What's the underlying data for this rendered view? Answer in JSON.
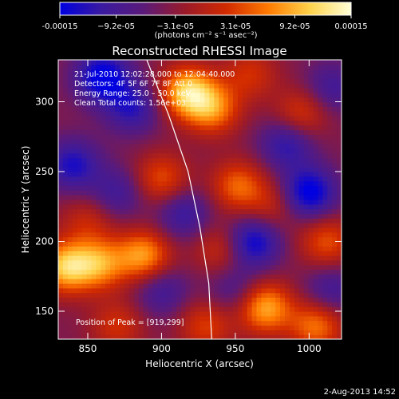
{
  "colorbar": {
    "tick_labels": [
      "-0.00015",
      "−9.2e-05",
      "−3.1e-05",
      "3.1e-05",
      "9.2e-05",
      "0.00015"
    ],
    "tick_values": [
      -0.00015,
      -9.2e-05,
      -3.1e-05,
      3.1e-05,
      9.2e-05,
      0.00015
    ],
    "range": [
      -0.00015,
      0.00015
    ],
    "units": "(photons cm⁻² s⁻¹ asec⁻²)",
    "colormap": [
      "#0000e0",
      "#3a1aa0",
      "#5a1a7a",
      "#9a1a2a",
      "#d12a00",
      "#ff7a00",
      "#ffd24a",
      "#ffffd8"
    ]
  },
  "chart_data": {
    "type": "heatmap",
    "title": "Reconstructed RHESSI Image",
    "xlabel": "Heliocentric X (arcsec)",
    "ylabel": "Heliocentric Y (arcsec)",
    "xlim": [
      830,
      1022
    ],
    "ylim": [
      130,
      330
    ],
    "x_ticks": [
      850,
      900,
      950,
      1000
    ],
    "y_ticks": [
      150,
      200,
      250,
      300
    ],
    "x_tick_labels": [
      "850",
      "900",
      "950",
      "1000"
    ],
    "y_tick_labels": [
      "150",
      "200",
      "250",
      "300"
    ],
    "annotations": [
      "21-Jul-2010 12:02:28.000 to 12:04:40.000",
      "Detectors: 4F 5F 6F 7F 8F  Att 0",
      "Energy Range: 25.0 – 50.0 keV",
      "Clean    Total counts: 1.56e+03"
    ],
    "peak_label": "Position of Peak = [919,299]",
    "peak": [
      919,
      299
    ],
    "limb_curve": [
      [
        890,
        330
      ],
      [
        905,
        290
      ],
      [
        918,
        250
      ],
      [
        926,
        210
      ],
      [
        932,
        170
      ],
      [
        934,
        130
      ]
    ],
    "hot_spots": [
      {
        "x": 835,
        "y": 182,
        "v": 0.00014
      },
      {
        "x": 858,
        "y": 184,
        "v": 0.00011
      },
      {
        "x": 918,
        "y": 307,
        "v": 0.00015
      },
      {
        "x": 935,
        "y": 295,
        "v": 0.0001
      },
      {
        "x": 900,
        "y": 245,
        "v": 8e-05
      },
      {
        "x": 888,
        "y": 190,
        "v": 0.00012
      },
      {
        "x": 952,
        "y": 240,
        "v": 9e-05
      },
      {
        "x": 970,
        "y": 153,
        "v": 0.00013
      },
      {
        "x": 1005,
        "y": 140,
        "v": 0.0001
      },
      {
        "x": 995,
        "y": 292,
        "v": 7e-05
      },
      {
        "x": 1012,
        "y": 200,
        "v": 8e-05
      },
      {
        "x": 930,
        "y": 140,
        "v": 7e-05
      },
      {
        "x": 870,
        "y": 140,
        "v": 6e-05
      },
      {
        "x": 960,
        "y": 320,
        "v": 6e-05
      },
      {
        "x": 850,
        "y": 215,
        "v": 5e-05
      },
      {
        "x": 975,
        "y": 225,
        "v": 5e-05
      },
      {
        "x": 940,
        "y": 195,
        "v": 6e-05
      },
      {
        "x": 860,
        "y": 318,
        "v": -0.00012
      },
      {
        "x": 880,
        "y": 296,
        "v": -8e-05
      },
      {
        "x": 1000,
        "y": 235,
        "v": -0.00012
      },
      {
        "x": 962,
        "y": 200,
        "v": -0.00011
      },
      {
        "x": 840,
        "y": 255,
        "v": -9e-05
      },
      {
        "x": 985,
        "y": 270,
        "v": -8e-05
      },
      {
        "x": 915,
        "y": 220,
        "v": -7e-05
      },
      {
        "x": 870,
        "y": 235,
        "v": -6e-05
      },
      {
        "x": 1015,
        "y": 310,
        "v": -6e-05
      },
      {
        "x": 950,
        "y": 165,
        "v": -5e-05
      },
      {
        "x": 900,
        "y": 165,
        "v": -6e-05
      },
      {
        "x": 1015,
        "y": 165,
        "v": -6e-05
      }
    ]
  },
  "footer": {
    "timestamp": "2-Aug-2013 14:52"
  }
}
